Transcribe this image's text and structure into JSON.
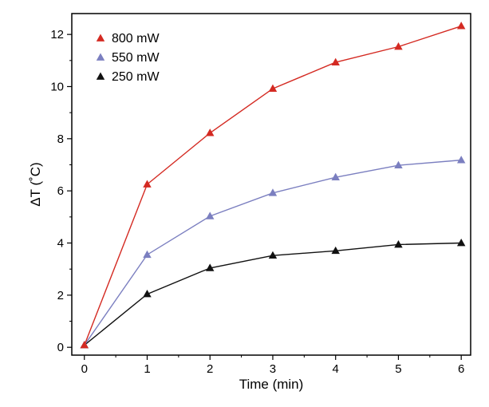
{
  "chart_data": {
    "type": "line",
    "xlabel": "Time (min)",
    "ylabel": "ΔT (˚C)",
    "xlim": [
      -0.2,
      6.15
    ],
    "ylim": [
      -0.3,
      12.8
    ],
    "x_ticks": [
      0,
      1,
      2,
      3,
      4,
      5,
      6
    ],
    "y_ticks": [
      0,
      2,
      4,
      6,
      8,
      10,
      12
    ],
    "grid": false,
    "legend_position": "top-left",
    "marker": "triangle",
    "x": [
      0,
      1,
      2,
      3,
      4,
      5,
      6
    ],
    "series": [
      {
        "name": "800 mW",
        "color": "#d42a22",
        "values": [
          0.08,
          6.25,
          8.22,
          9.92,
          10.93,
          11.53,
          12.32
        ]
      },
      {
        "name": "550 mW",
        "color": "#7b7fc0",
        "values": [
          0.08,
          3.55,
          5.03,
          5.92,
          6.52,
          6.98,
          7.18
        ]
      },
      {
        "name": "250 mW",
        "color": "#111111",
        "values": [
          0.08,
          2.04,
          3.04,
          3.52,
          3.7,
          3.94,
          4.0
        ]
      }
    ]
  }
}
